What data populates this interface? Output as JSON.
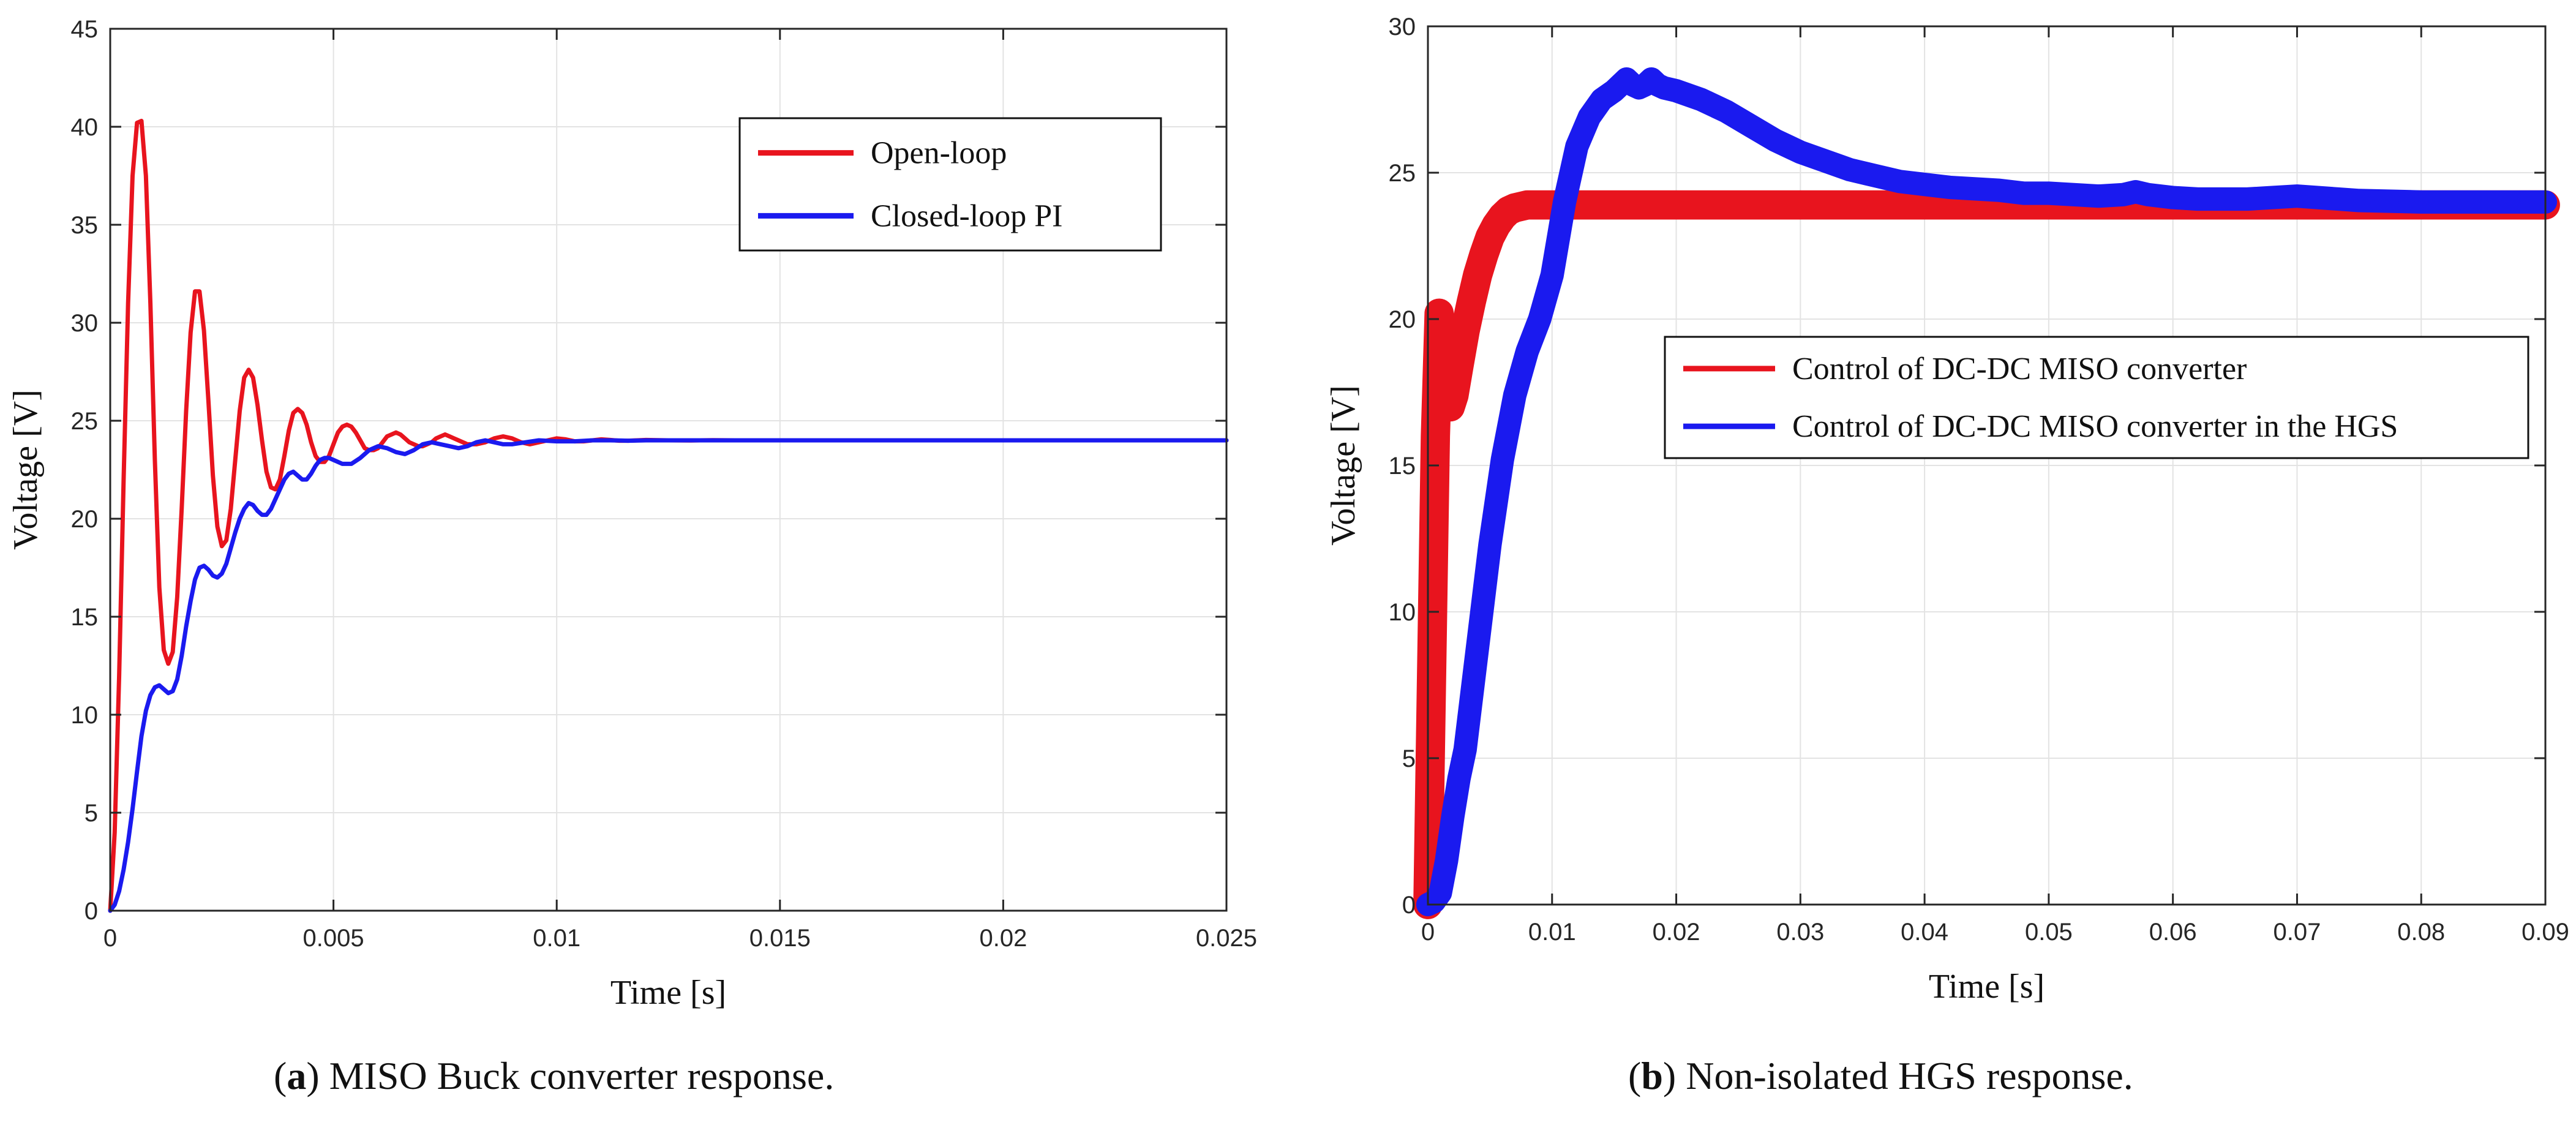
{
  "captions": [
    {
      "letter": "a",
      "open": "(",
      "close": ")",
      "text": " MISO Buck converter response."
    },
    {
      "letter": "b",
      "open": "(",
      "close": ")",
      "text": " Non-isolated HGS response."
    }
  ],
  "colors": {
    "red": "#e8141e",
    "blue": "#1a1aef",
    "grid": "#e3e3e3"
  },
  "chart_data": [
    {
      "type": "line",
      "title": "",
      "xlabel": "Time [s]",
      "ylabel": "Voltage [V]",
      "xlim": [
        0,
        0.025
      ],
      "ylim": [
        0,
        45
      ],
      "xticks": [
        0,
        0.005,
        0.01,
        0.015,
        0.02,
        0.025
      ],
      "xtick_labels": [
        "0",
        "0.005",
        "0.01",
        "0.015",
        "0.02",
        "0.025"
      ],
      "yticks": [
        0,
        5,
        10,
        15,
        20,
        25,
        30,
        35,
        40,
        45
      ],
      "ytick_labels": [
        "0",
        "5",
        "10",
        "15",
        "20",
        "25",
        "30",
        "35",
        "40",
        "45"
      ],
      "grid": true,
      "legend_position": "top-right",
      "series": [
        {
          "name": "Open-loop",
          "color": "#e8141e",
          "x": [
            0,
            0.0001,
            0.0002,
            0.0003,
            0.0004,
            0.0005,
            0.0006,
            0.0007,
            0.0008,
            0.0009,
            0.001,
            0.0011,
            0.0012,
            0.0013,
            0.0014,
            0.0015,
            0.0016,
            0.0017,
            0.0018,
            0.0019,
            0.002,
            0.0021,
            0.0022,
            0.0023,
            0.0024,
            0.0025,
            0.0026,
            0.0027,
            0.0028,
            0.0029,
            0.003,
            0.0031,
            0.0032,
            0.0033,
            0.0034,
            0.0035,
            0.0036,
            0.0037,
            0.0038,
            0.0039,
            0.004,
            0.0041,
            0.0042,
            0.0043,
            0.0044,
            0.0045,
            0.0046,
            0.0047,
            0.0048,
            0.0049,
            0.005,
            0.0051,
            0.0052,
            0.0053,
            0.0054,
            0.0055,
            0.0056,
            0.0057,
            0.0058,
            0.0059,
            0.006,
            0.0061,
            0.0062,
            0.0063,
            0.0064,
            0.0065,
            0.0066,
            0.0067,
            0.0068,
            0.0069,
            0.007,
            0.0071,
            0.0072,
            0.0073,
            0.0074,
            0.0075,
            0.0076,
            0.0077,
            0.0078,
            0.0079,
            0.008,
            0.0082,
            0.0084,
            0.0086,
            0.0088,
            0.009,
            0.0092,
            0.0094,
            0.0096,
            0.0098,
            0.01,
            0.0102,
            0.0104,
            0.0106,
            0.0108,
            0.011,
            0.0112,
            0.0114,
            0.0116,
            0.0118,
            0.012,
            0.0125,
            0.013,
            0.0135,
            0.014,
            0.0145,
            0.015,
            0.016,
            0.017,
            0.018,
            0.019,
            0.02,
            0.021,
            0.022,
            0.023,
            0.024,
            0.025
          ],
          "y": [
            0,
            4,
            12,
            22,
            31,
            37.5,
            40.2,
            40.3,
            37.5,
            31,
            23,
            16.5,
            13.3,
            12.6,
            13.2,
            16,
            20.5,
            25.5,
            29.5,
            31.6,
            31.6,
            29.6,
            26,
            22.2,
            19.6,
            18.6,
            18.9,
            20.5,
            23,
            25.5,
            27.2,
            27.6,
            27.2,
            25.8,
            24,
            22.4,
            21.6,
            21.5,
            22,
            23.2,
            24.5,
            25.4,
            25.6,
            25.4,
            24.8,
            23.9,
            23.2,
            22.9,
            22.9,
            23.2,
            23.8,
            24.4,
            24.7,
            24.8,
            24.7,
            24.4,
            24.0,
            23.6,
            23.5,
            23.5,
            23.6,
            23.9,
            24.2,
            24.3,
            24.4,
            24.3,
            24.1,
            23.9,
            23.8,
            23.7,
            23.7,
            23.8,
            23.9,
            24.1,
            24.2,
            24.3,
            24.2,
            24.1,
            24.0,
            23.9,
            23.8,
            23.8,
            23.9,
            24.1,
            24.2,
            24.1,
            23.9,
            23.8,
            23.9,
            24.0,
            24.1,
            24.05,
            23.95,
            23.95,
            24.0,
            24.05,
            24.02,
            23.98,
            23.98,
            24.0,
            24.02,
            24.0,
            23.99,
            24.01,
            24.0,
            24.0,
            24.0,
            24.0,
            24.0,
            24.0,
            24.0,
            24.0,
            24.0,
            24.0,
            24.0,
            24.0,
            24.0
          ]
        },
        {
          "name": "Closed-loop PI",
          "color": "#1a1aef",
          "x": [
            0,
            0.0001,
            0.0002,
            0.0003,
            0.0004,
            0.0005,
            0.0006,
            0.0007,
            0.0008,
            0.0009,
            0.001,
            0.0011,
            0.0012,
            0.0013,
            0.0014,
            0.0015,
            0.0016,
            0.0017,
            0.0018,
            0.0019,
            0.002,
            0.0021,
            0.0022,
            0.0023,
            0.0024,
            0.0025,
            0.0026,
            0.0027,
            0.0028,
            0.0029,
            0.003,
            0.0031,
            0.0032,
            0.0033,
            0.0034,
            0.0035,
            0.0036,
            0.0037,
            0.0038,
            0.0039,
            0.004,
            0.0041,
            0.0042,
            0.0043,
            0.0044,
            0.0045,
            0.0046,
            0.0047,
            0.0048,
            0.0049,
            0.005,
            0.0052,
            0.0054,
            0.0056,
            0.0058,
            0.006,
            0.0062,
            0.0064,
            0.0066,
            0.0068,
            0.007,
            0.0072,
            0.0074,
            0.0076,
            0.0078,
            0.008,
            0.0082,
            0.0084,
            0.0086,
            0.0088,
            0.009,
            0.0093,
            0.0096,
            0.01,
            0.0104,
            0.0108,
            0.0112,
            0.0116,
            0.012,
            0.0125,
            0.013,
            0.0135,
            0.014,
            0.015,
            0.016,
            0.017,
            0.018,
            0.019,
            0.02,
            0.021,
            0.022,
            0.023,
            0.024,
            0.025
          ],
          "y": [
            0,
            0.3,
            1.0,
            2.1,
            3.5,
            5.2,
            7.1,
            8.9,
            10.2,
            11.0,
            11.4,
            11.5,
            11.3,
            11.1,
            11.2,
            11.8,
            13.0,
            14.5,
            15.8,
            16.9,
            17.5,
            17.6,
            17.4,
            17.1,
            17.0,
            17.2,
            17.7,
            18.5,
            19.3,
            20.0,
            20.5,
            20.8,
            20.7,
            20.4,
            20.2,
            20.2,
            20.5,
            21.0,
            21.5,
            22.0,
            22.3,
            22.4,
            22.2,
            22.0,
            22.0,
            22.3,
            22.7,
            23.0,
            23.1,
            23.1,
            23.0,
            22.8,
            22.8,
            23.1,
            23.5,
            23.7,
            23.6,
            23.4,
            23.3,
            23.5,
            23.8,
            23.9,
            23.8,
            23.7,
            23.6,
            23.7,
            23.9,
            24.0,
            23.9,
            23.8,
            23.8,
            23.9,
            24.0,
            23.95,
            23.95,
            24.0,
            24.0,
            23.98,
            24.0,
            24.0,
            24.0,
            24.0,
            24.0,
            24.0,
            24.0,
            24.0,
            24.0,
            24.0,
            24.0,
            24.0,
            24.0,
            24.0,
            24.0,
            24.0
          ]
        }
      ]
    },
    {
      "type": "line",
      "title": "",
      "xlabel": "Time [s]",
      "ylabel": "Voltage [V]",
      "xlim": [
        0,
        0.09
      ],
      "ylim": [
        0,
        30
      ],
      "xticks": [
        0,
        0.01,
        0.02,
        0.03,
        0.04,
        0.05,
        0.06,
        0.07,
        0.08,
        0.09
      ],
      "xtick_labels": [
        "0",
        "0.01",
        "0.02",
        "0.03",
        "0.04",
        "0.05",
        "0.06",
        "0.07",
        "0.08",
        "0.09"
      ],
      "yticks": [
        0,
        5,
        10,
        15,
        20,
        25,
        30
      ],
      "ytick_labels": [
        "0",
        "5",
        "10",
        "15",
        "20",
        "25",
        "30"
      ],
      "grid": true,
      "legend_position": "center-right",
      "series": [
        {
          "name": "Control of DC-DC MISO converter",
          "color": "#e8141e",
          "ripple": 0.5,
          "x": [
            0,
            0.0003,
            0.0006,
            0.0009,
            0.0012,
            0.0015,
            0.0018,
            0.0021,
            0.0025,
            0.003,
            0.0035,
            0.004,
            0.0045,
            0.005,
            0.0055,
            0.006,
            0.0065,
            0.007,
            0.0075,
            0.008,
            0.009,
            0.01,
            0.011,
            0.012,
            0.015,
            0.02,
            0.03,
            0.04,
            0.05,
            0.06,
            0.07,
            0.08,
            0.09
          ],
          "y": [
            0,
            8,
            16,
            20.2,
            19.0,
            17.4,
            17.0,
            17.4,
            18.4,
            19.6,
            20.6,
            21.5,
            22.2,
            22.8,
            23.2,
            23.5,
            23.7,
            23.8,
            23.85,
            23.9,
            23.9,
            23.9,
            23.9,
            23.9,
            23.9,
            23.9,
            23.9,
            23.9,
            23.9,
            23.9,
            23.9,
            23.9,
            23.9
          ]
        },
        {
          "name": "Control of DC-DC MISO converter in the HGS",
          "color": "#1a1aef",
          "ripple": 0.4,
          "x": [
            0,
            0.0005,
            0.001,
            0.0015,
            0.002,
            0.0025,
            0.003,
            0.004,
            0.005,
            0.006,
            0.007,
            0.008,
            0.009,
            0.01,
            0.011,
            0.012,
            0.013,
            0.014,
            0.015,
            0.016,
            0.0165,
            0.017,
            0.0175,
            0.018,
            0.0185,
            0.019,
            0.02,
            0.022,
            0.024,
            0.026,
            0.028,
            0.03,
            0.032,
            0.034,
            0.036,
            0.038,
            0.04,
            0.042,
            0.044,
            0.046,
            0.048,
            0.05,
            0.052,
            0.054,
            0.056,
            0.057,
            0.058,
            0.06,
            0.062,
            0.064,
            0.066,
            0.068,
            0.07,
            0.075,
            0.08,
            0.085,
            0.09
          ],
          "y": [
            0,
            0.1,
            0.4,
            1.5,
            3.0,
            4.3,
            5.3,
            8.8,
            12.3,
            15.2,
            17.4,
            18.9,
            20.0,
            21.5,
            24.0,
            25.9,
            26.9,
            27.5,
            27.8,
            28.2,
            28.0,
            27.9,
            28.0,
            28.2,
            28.0,
            27.9,
            27.8,
            27.5,
            27.1,
            26.6,
            26.1,
            25.7,
            25.4,
            25.1,
            24.9,
            24.7,
            24.6,
            24.5,
            24.45,
            24.4,
            24.3,
            24.3,
            24.25,
            24.2,
            24.25,
            24.35,
            24.25,
            24.15,
            24.1,
            24.1,
            24.1,
            24.15,
            24.2,
            24.05,
            24.0,
            24.0,
            24.0
          ]
        }
      ]
    }
  ]
}
